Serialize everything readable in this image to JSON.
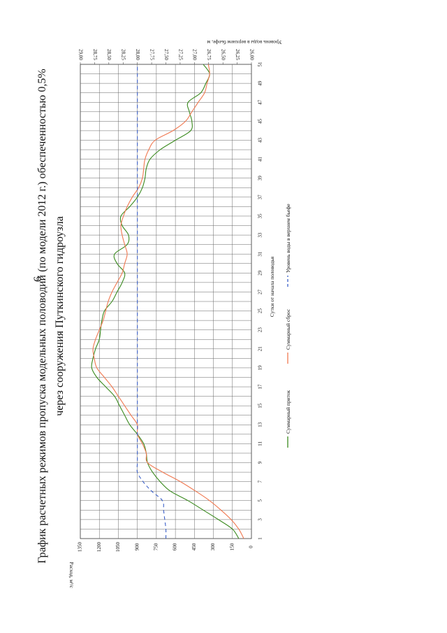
{
  "page": {
    "number": "6"
  },
  "chart_data": {
    "type": "line",
    "title_line1": "График расчетных режимов пропуска модельных половодий (по модели 2012 г.) обеспеченностью 0,5%",
    "title_line2": "через сооружения Путкинского гидроузла",
    "xlabel": "Сутки от начала половодья",
    "ylabel": "Расход, м³/с",
    "y2label": "Уровень воды в верхнем бьефе, м",
    "xlim": [
      1,
      51
    ],
    "ylim": [
      0,
      1350
    ],
    "y2lim": [
      26.0,
      29.0
    ],
    "x_ticks": [
      "1",
      "3",
      "5",
      "7",
      "9",
      "11",
      "13",
      "15",
      "17",
      "19",
      "21",
      "23",
      "25",
      "27",
      "29",
      "31",
      "33",
      "35",
      "37",
      "39",
      "41",
      "43",
      "45",
      "47",
      "49",
      "51"
    ],
    "y_ticks": [
      "0",
      "150",
      "300",
      "450",
      "600",
      "750",
      "900",
      "1050",
      "1200",
      "1350"
    ],
    "y2_ticks": [
      "26,00",
      "26,25",
      "26,50",
      "26,75",
      "27,00",
      "27,25",
      "27,50",
      "27,75",
      "28,00",
      "28,25",
      "28,50",
      "28,75",
      "29,00"
    ],
    "grid": true,
    "legend_position": "bottom",
    "series": [
      {
        "name": "Суммарный приток",
        "color": "#3a8a1e",
        "axis": "left",
        "x": [
          1,
          2,
          3,
          4,
          5,
          6,
          7,
          8,
          9,
          10,
          11,
          12,
          13,
          14,
          15,
          16,
          17,
          18,
          19,
          20,
          21,
          22,
          23,
          24,
          25,
          26,
          27,
          28,
          29,
          30,
          31,
          32,
          33,
          34,
          35,
          36,
          37,
          38,
          39,
          40,
          41,
          42,
          43,
          44,
          45,
          46,
          47,
          48,
          49,
          50,
          51
        ],
        "y": [
          100,
          150,
          260,
          380,
          500,
          640,
          720,
          780,
          820,
          830,
          850,
          900,
          960,
          1000,
          1040,
          1080,
          1150,
          1220,
          1260,
          1250,
          1230,
          1200,
          1190,
          1180,
          1160,
          1100,
          1060,
          1020,
          1000,
          1060,
          1080,
          980,
          970,
          1020,
          1030,
          960,
          900,
          860,
          840,
          830,
          800,
          720,
          600,
          480,
          470,
          490,
          500,
          400,
          360,
          330,
          380
        ]
      },
      {
        "name": "Суммарный сброс",
        "color": "#f07850",
        "axis": "left",
        "x": [
          1,
          2,
          3,
          4,
          5,
          6,
          7,
          8,
          9,
          10,
          11,
          12,
          13,
          14,
          15,
          16,
          17,
          18,
          19,
          20,
          21,
          22,
          23,
          24,
          25,
          26,
          27,
          28,
          29,
          30,
          31,
          32,
          33,
          34,
          35,
          36,
          37,
          38,
          39,
          40,
          41,
          42,
          43,
          44,
          45,
          46,
          47,
          48,
          49,
          50,
          51
        ],
        "y": [
          60,
          100,
          160,
          240,
          330,
          440,
          560,
          700,
          820,
          830,
          860,
          900,
          900,
          950,
          1000,
          1050,
          1100,
          1160,
          1220,
          1240,
          1250,
          1230,
          1200,
          1170,
          1150,
          1130,
          1100,
          1060,
          1020,
          1000,
          980,
          1000,
          1020,
          1030,
          1010,
          980,
          940,
          890,
          860,
          850,
          840,
          810,
          760,
          620,
          520,
          470,
          420,
          370,
          350,
          330,
          340
        ]
      },
      {
        "name": "Уровень воды в верхнем бьефе",
        "color": "#3a5fc8",
        "axis": "right",
        "dashed": true,
        "x": [
          1,
          2,
          3,
          4,
          5,
          6,
          7,
          8,
          9,
          10,
          11,
          12,
          13,
          14,
          15,
          16,
          17,
          18,
          19,
          20,
          21,
          22,
          23,
          24,
          25,
          26,
          27,
          28,
          29,
          30,
          31,
          32,
          33,
          34,
          35,
          36,
          37,
          38,
          39,
          40,
          41,
          42,
          43,
          44,
          45,
          46,
          47,
          48,
          49,
          50,
          51
        ],
        "y": [
          27.5,
          27.5,
          27.52,
          27.54,
          27.56,
          27.75,
          27.9,
          28.0,
          28.0,
          28.0,
          28.0,
          28.0,
          28.0,
          28.0,
          28.0,
          28.0,
          28.0,
          28.0,
          28.0,
          28.0,
          28.0,
          28.0,
          28.0,
          28.0,
          28.0,
          28.0,
          28.0,
          28.0,
          28.0,
          28.0,
          28.0,
          28.0,
          28.0,
          28.0,
          28.0,
          28.0,
          28.0,
          28.0,
          28.0,
          28.0,
          28.0,
          28.0,
          28.0,
          28.0,
          28.0,
          28.0,
          28.0,
          28.0,
          28.0,
          28.0,
          28.0
        ]
      }
    ]
  }
}
